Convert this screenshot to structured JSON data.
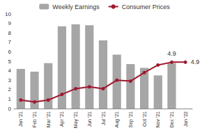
{
  "chart_data": {
    "type": "bar",
    "categories": [
      "Jan '21",
      "Feb '21",
      "Mar '21",
      "Apr '21",
      "May '21",
      "Jun '21",
      "Jul '21",
      "Aug '21",
      "Sep '21",
      "Oct '21",
      "Nov '21",
      "Dec '21",
      "Jan '22"
    ],
    "series": [
      {
        "name": "Weekly Earnings",
        "type": "bar",
        "color": "#a6a6a6",
        "values": [
          4.2,
          3.9,
          4.8,
          8.7,
          8.9,
          8.8,
          7.2,
          5.7,
          4.7,
          4.3,
          3.5,
          4.8,
          null
        ]
      },
      {
        "name": "Consumer Prices",
        "type": "line",
        "color": "#a0182e",
        "marker": "circle",
        "data_labels": true,
        "values": [
          0.9,
          0.7,
          0.9,
          1.5,
          2.1,
          2.3,
          2.1,
          3.0,
          2.9,
          3.8,
          4.6,
          4.9,
          4.9
        ],
        "value_labels": [
          null,
          null,
          null,
          null,
          null,
          null,
          null,
          null,
          null,
          null,
          null,
          "4.9",
          "4.9"
        ]
      }
    ],
    "ylim": [
      0,
      10
    ],
    "yticks": [
      0,
      1,
      2,
      3,
      4,
      5,
      6,
      7,
      8,
      9,
      10
    ],
    "grid": false,
    "legend": "top"
  }
}
